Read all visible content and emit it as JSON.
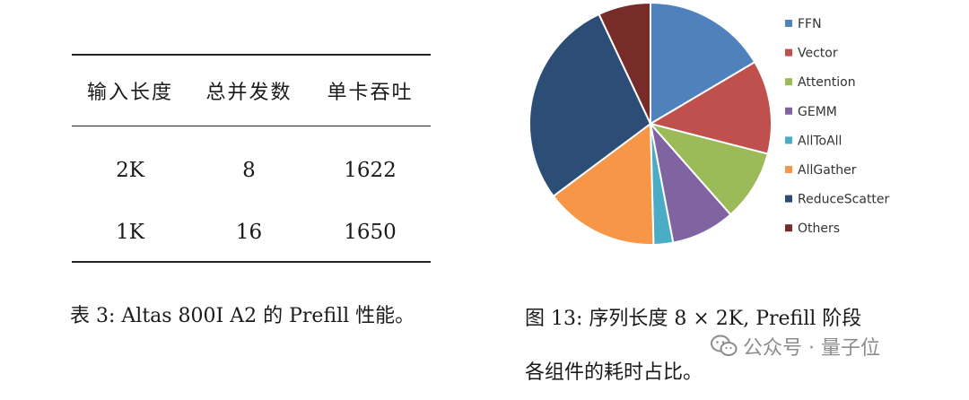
{
  "table": {
    "headers": [
      "输入长度",
      "总并发数",
      "单卡吞吐"
    ],
    "rows": [
      [
        "2K",
        "8",
        "1622"
      ],
      [
        "1K",
        "16",
        "1650"
      ]
    ]
  },
  "table_caption": "表 3: Altas 800I A2 的 Prefill 性能。",
  "figure_caption_line1": "图 13: 序列长度 8 × 2K, Prefill 阶段",
  "figure_caption_line2": "各组件的耗时占比。",
  "watermark": {
    "text": "公众号 · 量子位",
    "icon": "wechat-icon"
  },
  "chart_data": {
    "type": "pie",
    "labels": [
      "FFN",
      "Vector",
      "Attention",
      "GEMM",
      "AllToAll",
      "AllGather",
      "ReduceScatter",
      "Others"
    ],
    "values": [
      16.5,
      12.5,
      9.5,
      8.5,
      2.6,
      15.2,
      28.2,
      7.0
    ],
    "colors": [
      "#4f81bd",
      "#c0504d",
      "#9bbb59",
      "#8064a2",
      "#4bacc6",
      "#f79646",
      "#2c4d75",
      "#772c2a"
    ],
    "legend_position": "right",
    "start_angle": "top, clockwise"
  }
}
